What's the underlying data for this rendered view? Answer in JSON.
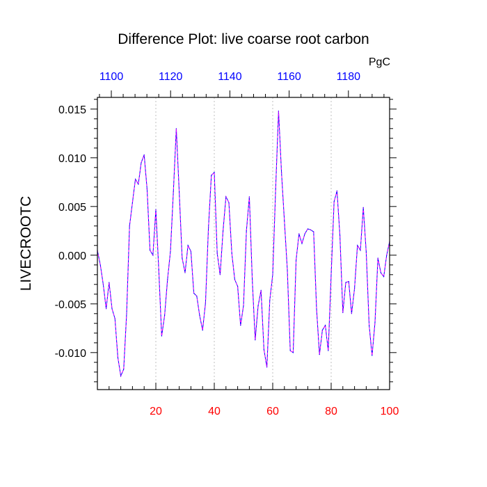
{
  "chart_data": {
    "type": "line",
    "title": "Difference Plot: live coarse root carbon",
    "ylabel": "LIVECROOTC",
    "top_axis_units": "PgC",
    "xlim": [
      0,
      100
    ],
    "ylim": [
      -0.0138,
      0.0162
    ],
    "bottom_ticks": [
      20,
      40,
      60,
      80,
      100
    ],
    "bottom_tick_labels": [
      "20",
      "40",
      "60",
      "80",
      "100"
    ],
    "top_ticks": [
      1100,
      1120,
      1140,
      1160,
      1180
    ],
    "top_tick_labels": [
      "1100",
      "1120",
      "1140",
      "1160",
      "1180"
    ],
    "top_axis_range": [
      1095.3,
      1193.9
    ],
    "y_ticks": [
      0.015,
      0.01,
      0.005,
      0.0,
      -0.005,
      -0.01
    ],
    "y_tick_labels": [
      "0.015",
      "0.010",
      "0.005",
      "0.000",
      "-0.005",
      "-0.010"
    ],
    "grid": "vertical dashed at bottom-axis ticks",
    "colors": {
      "bottom_axis": "#ff0000",
      "top_axis": "#0000ff",
      "line_primary": "#0000ff",
      "line_secondary": "#ff00ff",
      "grid": "#b0b0b0"
    },
    "series": [
      {
        "name": "LIVECROOTC difference",
        "x": [
          0,
          1,
          2,
          3,
          4,
          5,
          6,
          7,
          8,
          9,
          10,
          11,
          12,
          13,
          14,
          15,
          16,
          17,
          18,
          19,
          20,
          21,
          22,
          23,
          24,
          25,
          26,
          27,
          28,
          29,
          30,
          31,
          32,
          33,
          34,
          35,
          36,
          37,
          38,
          39,
          40,
          41,
          42,
          43,
          44,
          45,
          46,
          47,
          48,
          49,
          50,
          51,
          52,
          53,
          54,
          55,
          56,
          57,
          58,
          59,
          60,
          61,
          62,
          63,
          64,
          65,
          66,
          67,
          68,
          69,
          70,
          71,
          72,
          73,
          74,
          75,
          76,
          77,
          78,
          79,
          80,
          81,
          82,
          83,
          84,
          85,
          86,
          87,
          88,
          89,
          90,
          91,
          92,
          93,
          94,
          95,
          96,
          97,
          98,
          99,
          100
        ],
        "values": [
          0.0005,
          -0.001,
          -0.003,
          -0.0055,
          -0.0028,
          -0.0055,
          -0.0065,
          -0.0105,
          -0.0124,
          -0.0117,
          -0.006,
          0.003,
          0.0054,
          0.0078,
          0.0073,
          0.0095,
          0.0103,
          0.0068,
          0.0005,
          0.0,
          0.0047,
          -0.0015,
          -0.0083,
          -0.0062,
          -0.0025,
          0.0004,
          0.0065,
          0.013,
          0.0065,
          -0.0003,
          -0.0018,
          0.001,
          0.0004,
          -0.0039,
          -0.0042,
          -0.0062,
          -0.0077,
          -0.0049,
          0.0028,
          0.0082,
          0.0085,
          0.0002,
          -0.002,
          0.0025,
          0.006,
          0.0054,
          0.0002,
          -0.0025,
          -0.0032,
          -0.0072,
          -0.0052,
          0.0025,
          0.006,
          -0.0025,
          -0.0087,
          -0.0052,
          -0.0036,
          -0.0097,
          -0.0115,
          -0.0046,
          -0.002,
          0.0068,
          0.0148,
          0.0085,
          0.0035,
          -0.0015,
          -0.0098,
          -0.01,
          -0.0005,
          0.0022,
          0.0012,
          0.0022,
          0.0027,
          0.0026,
          0.0024,
          -0.0055,
          -0.0102,
          -0.0077,
          -0.0072,
          -0.0098,
          -0.002,
          0.0055,
          0.0066,
          0.002,
          -0.0059,
          -0.0028,
          -0.0027,
          -0.006,
          -0.0034,
          0.001,
          0.0005,
          0.0049,
          0.0003,
          -0.0072,
          -0.0103,
          -0.0069,
          -0.0003,
          -0.0018,
          -0.0022,
          0.0,
          0.0014
        ]
      }
    ]
  }
}
